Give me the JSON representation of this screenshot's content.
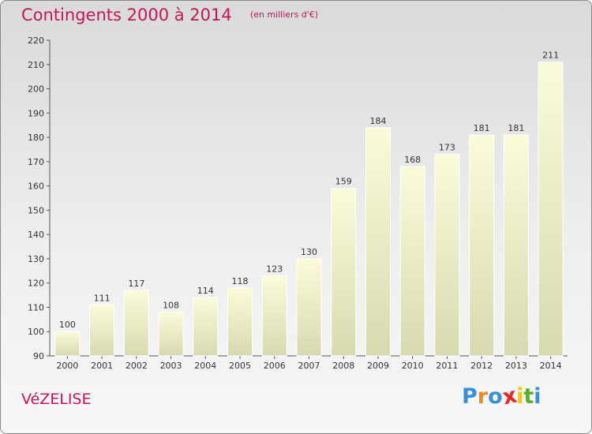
{
  "chart_data": {
    "type": "bar",
    "title": "Contingents 2000 à 2014",
    "subtitle": "(en milliers d'€)",
    "categories": [
      "2000",
      "2001",
      "2002",
      "2003",
      "2004",
      "2005",
      "2006",
      "2007",
      "2008",
      "2009",
      "2010",
      "2011",
      "2012",
      "2013",
      "2014"
    ],
    "values": [
      100,
      111,
      117,
      108,
      114,
      118,
      123,
      130,
      159,
      184,
      168,
      173,
      181,
      181,
      211
    ],
    "ylim": [
      90,
      220
    ],
    "yticks": [
      90,
      100,
      110,
      120,
      130,
      140,
      150,
      160,
      170,
      180,
      190,
      200,
      210,
      220
    ],
    "grid": false,
    "bar_color": "#f6f6c8",
    "title_color": "#c4165a"
  },
  "footer": {
    "place": "VéZELISE"
  },
  "logo": {
    "letters": [
      "P",
      "r",
      "o",
      "x",
      "i",
      "t",
      "i"
    ],
    "colors": [
      "#3a8fd6",
      "#f08a1c",
      "#3a8fd6",
      "#e8262a",
      "#f2c318",
      "#5aae2e",
      "#3a8fd6"
    ]
  }
}
